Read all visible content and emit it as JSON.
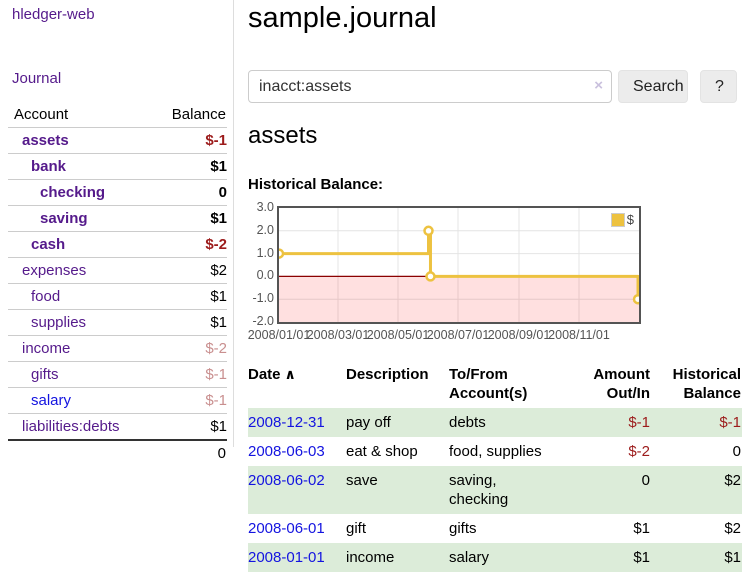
{
  "app": {
    "title": "hledger-web",
    "nav_journal": "Journal"
  },
  "colors": {
    "link_purple": "#551a8b",
    "link_blue": "#1414e0",
    "negative": "#9c1b1b",
    "negative_muted": "#c98f8f",
    "row_stripe_green": "#dcecd9",
    "chart_series_gold": "#edc240",
    "chart_zero_line": "#8b0000",
    "chart_negative_region": "rgba(255,0,0,0.12)"
  },
  "sidebar": {
    "header": {
      "account": "Account",
      "balance": "Balance"
    },
    "accounts": [
      {
        "name": "assets",
        "balance": "$-1",
        "depth": 1,
        "bold": true,
        "bal_style": "neg",
        "link": "purple"
      },
      {
        "name": "bank",
        "balance": "$1",
        "depth": 2,
        "bold": true,
        "bal_style": "",
        "link": "purple"
      },
      {
        "name": "checking",
        "balance": "0",
        "depth": 3,
        "bold": true,
        "bal_style": "",
        "link": "purple"
      },
      {
        "name": "saving",
        "balance": "$1",
        "depth": 3,
        "bold": true,
        "bal_style": "",
        "link": "purple"
      },
      {
        "name": "cash",
        "balance": "$-2",
        "depth": 2,
        "bold": true,
        "bal_style": "neg",
        "link": "purple"
      },
      {
        "name": "expenses",
        "balance": "$2",
        "depth": 1,
        "bold": false,
        "bal_style": "",
        "link": "purple"
      },
      {
        "name": "food",
        "balance": "$1",
        "depth": 2,
        "bold": false,
        "bal_style": "",
        "link": "purple"
      },
      {
        "name": "supplies",
        "balance": "$1",
        "depth": 2,
        "bold": false,
        "bal_style": "",
        "link": "purple"
      },
      {
        "name": "income",
        "balance": "$-2",
        "depth": 1,
        "bold": false,
        "bal_style": "neg-muted",
        "link": "purple"
      },
      {
        "name": "gifts",
        "balance": "$-1",
        "depth": 2,
        "bold": false,
        "bal_style": "neg-muted",
        "link": "purple"
      },
      {
        "name": "salary",
        "balance": "$-1",
        "depth": 2,
        "bold": false,
        "bal_style": "neg-muted",
        "link": "blue"
      },
      {
        "name": "liabilities:debts",
        "balance": "$1",
        "depth": 1,
        "bold": false,
        "bal_style": "",
        "link": "purple"
      }
    ],
    "total": "0"
  },
  "header": {
    "title": "sample.journal"
  },
  "search": {
    "value": "inacct:assets",
    "clear_icon": "×",
    "button": "Search",
    "help_button": "?"
  },
  "account_page": {
    "title": "assets",
    "chart_label": "Historical Balance:"
  },
  "chart_data": {
    "type": "line",
    "title": "Historical Balance:",
    "step": true,
    "series": [
      {
        "name": "$",
        "color": "#edc240",
        "points": [
          {
            "date": "2008-01-01",
            "value": 1
          },
          {
            "date": "2008-06-01",
            "value": 2
          },
          {
            "date": "2008-06-03",
            "value": 0
          },
          {
            "date": "2008-12-31",
            "value": -1
          }
        ]
      }
    ],
    "ylim": [
      -2,
      3
    ],
    "yticks": [
      "3.0",
      "2.0",
      "1.0",
      "0.0",
      "-1.0",
      "-2.0"
    ],
    "ytick_values": [
      3,
      2,
      1,
      0,
      -1,
      -2
    ],
    "xticks": [
      "2008/01/01",
      "2008/03/01",
      "2008/05/01",
      "2008/07/01",
      "2008/09/01",
      "2008/11/01"
    ],
    "grid": true,
    "legend": {
      "position": "top-right",
      "label": "$",
      "swatch_color": "#edc240"
    }
  },
  "register": {
    "columns": [
      "Date",
      "Description",
      "To/From Account(s)",
      "Amount Out/In",
      "Historical Balance"
    ],
    "sort_icon": "∧",
    "rows": [
      {
        "date": "2008-12-31",
        "description": "pay off",
        "accounts": "debts",
        "amount": "$-1",
        "amount_neg": true,
        "balance": "$-1",
        "balance_neg": true
      },
      {
        "date": "2008-06-03",
        "description": "eat & shop",
        "accounts": "food, supplies",
        "amount": "$-2",
        "amount_neg": true,
        "balance": "0",
        "balance_neg": false
      },
      {
        "date": "2008-06-02",
        "description": "save",
        "accounts": "saving, checking",
        "amount": "0",
        "amount_neg": false,
        "balance": "$2",
        "balance_neg": false
      },
      {
        "date": "2008-06-01",
        "description": "gift",
        "accounts": "gifts",
        "amount": "$1",
        "amount_neg": false,
        "balance": "$2",
        "balance_neg": false
      },
      {
        "date": "2008-01-01",
        "description": "income",
        "accounts": "salary",
        "amount": "$1",
        "amount_neg": false,
        "balance": "$1",
        "balance_neg": false
      }
    ]
  }
}
